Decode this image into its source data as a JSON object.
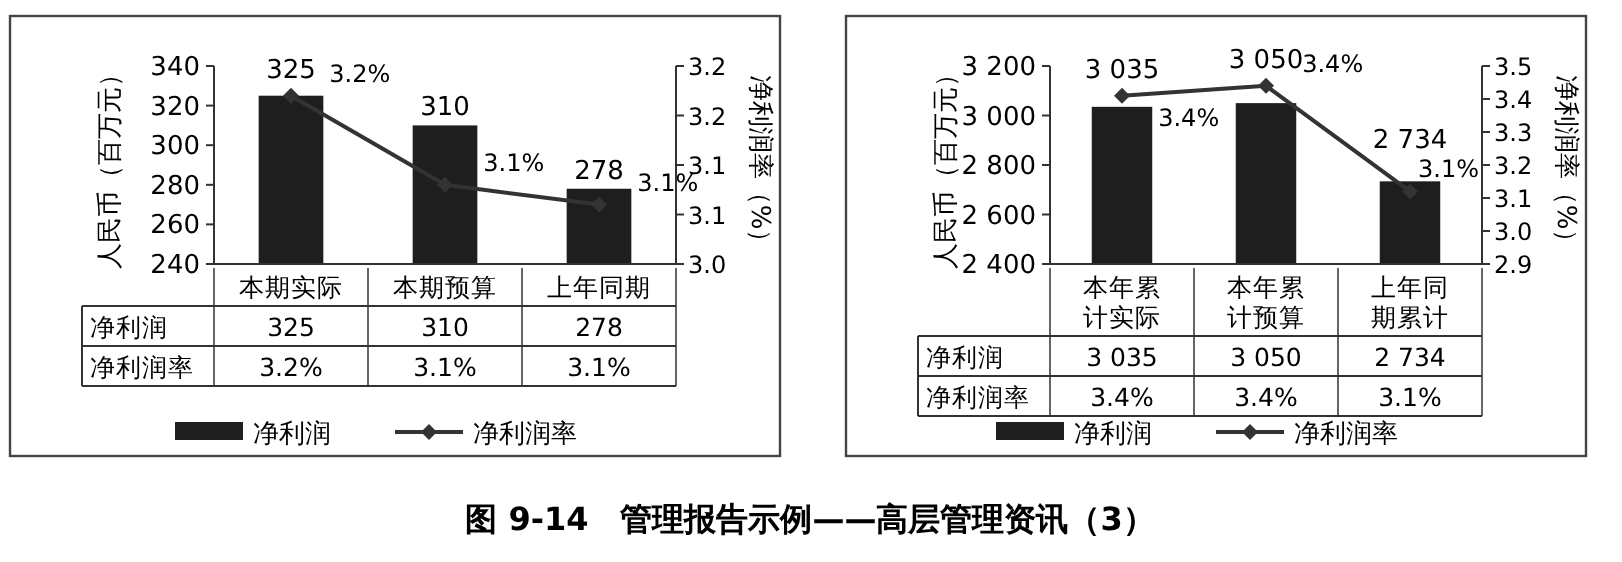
{
  "chart_data": [
    {
      "type": "bar",
      "title": "图 9-14　管理报告示例——高层管理资讯（3）",
      "ylabel": "人民币（百万元）",
      "y2label": "净利润率（%）",
      "categories": [
        "本期实际",
        "本期预算",
        "上年同期"
      ],
      "series": [
        {
          "name": "净利润",
          "type": "bar",
          "color": "#1e1e1e",
          "values": [
            325,
            310,
            278
          ],
          "value_labels": [
            "325",
            "310",
            "278"
          ]
        },
        {
          "name": "净利润率",
          "type": "line",
          "axis": "y2",
          "color": "#333333",
          "values": [
            3.17,
            3.08,
            3.06
          ],
          "value_labels": [
            "3.2%",
            "3.1%",
            "3.1%"
          ]
        }
      ],
      "ylim": [
        240,
        340
      ],
      "yticks": [
        240,
        260,
        280,
        300,
        320,
        340
      ],
      "y2lim": [
        3.0,
        3.2
      ],
      "y2ticks": [
        "3.0",
        {
          "value": 3.05,
          "label": "3.1"
        },
        {
          "value": 3.1,
          "label": "3.1"
        },
        {
          "value": 3.15,
          "label": "3.2"
        },
        {
          "value": 3.2,
          "label": "3.2"
        }
      ],
      "legend": "bottom",
      "marker": "diamond",
      "grid": false
    },
    {
      "type": "bar",
      "ylabel": "人民币（百万元）",
      "y2label": "净利润率（%）",
      "categories": [
        "本年累计实际",
        "本年累计预算",
        "上年同期累计"
      ],
      "series": [
        {
          "name": "净利润",
          "type": "bar",
          "color": "#1e1e1e",
          "values": [
            3035,
            3050,
            2734
          ],
          "value_labels": [
            "3 035",
            "3 050",
            "2 734"
          ]
        },
        {
          "name": "净利润率",
          "type": "line",
          "axis": "y2",
          "color": "#333333",
          "values": [
            3.41,
            3.44,
            3.12
          ],
          "value_labels": [
            "3.4%",
            "3.4%",
            "3.1%"
          ]
        }
      ],
      "ylim": [
        2400,
        3200
      ],
      "yticks": [
        {
          "value": 2400,
          "label": "2 400"
        },
        {
          "value": 2600,
          "label": "2 600"
        },
        {
          "value": 2800,
          "label": "2 800"
        },
        {
          "value": 3000,
          "label": "3 000"
        },
        {
          "value": 3200,
          "label": "3 200"
        }
      ],
      "y2lim": [
        2.9,
        3.5
      ],
      "y2ticks": [
        {
          "value": 2.9,
          "label": "2.9"
        },
        {
          "value": 3.0,
          "label": "3.0"
        },
        {
          "value": 3.1,
          "label": "3.1"
        },
        {
          "value": 3.2,
          "label": "3.2"
        },
        {
          "value": 3.3,
          "label": "3.3"
        },
        {
          "value": 3.4,
          "label": "3.4"
        },
        {
          "value": 3.5,
          "label": "3.5"
        }
      ],
      "legend": "bottom",
      "marker": "diamond",
      "grid": false
    }
  ]
}
